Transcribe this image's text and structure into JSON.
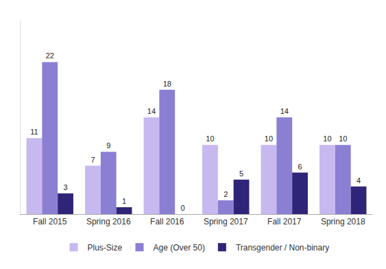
{
  "chart_data": {
    "type": "bar",
    "categories": [
      "Fall 2015",
      "Spring 2016",
      "Fall 2016",
      "Spring 2017",
      "Fall 2017",
      "Spring 2018"
    ],
    "series": [
      {
        "name": "Plus-Size",
        "color": "#c8b8f0",
        "values": [
          11,
          7,
          14,
          10,
          10,
          10
        ]
      },
      {
        "name": "Age (Over 50)",
        "color": "#8b7fd4",
        "values": [
          22,
          9,
          18,
          2,
          14,
          10
        ]
      },
      {
        "name": "Transgender / Non-binary",
        "color": "#2e2578",
        "values": [
          3,
          1,
          0,
          5,
          6,
          4
        ]
      }
    ],
    "ylim": [
      0,
      28
    ],
    "grid": false,
    "legend": "bottom",
    "data_labels": true,
    "tick_labels": "x"
  }
}
